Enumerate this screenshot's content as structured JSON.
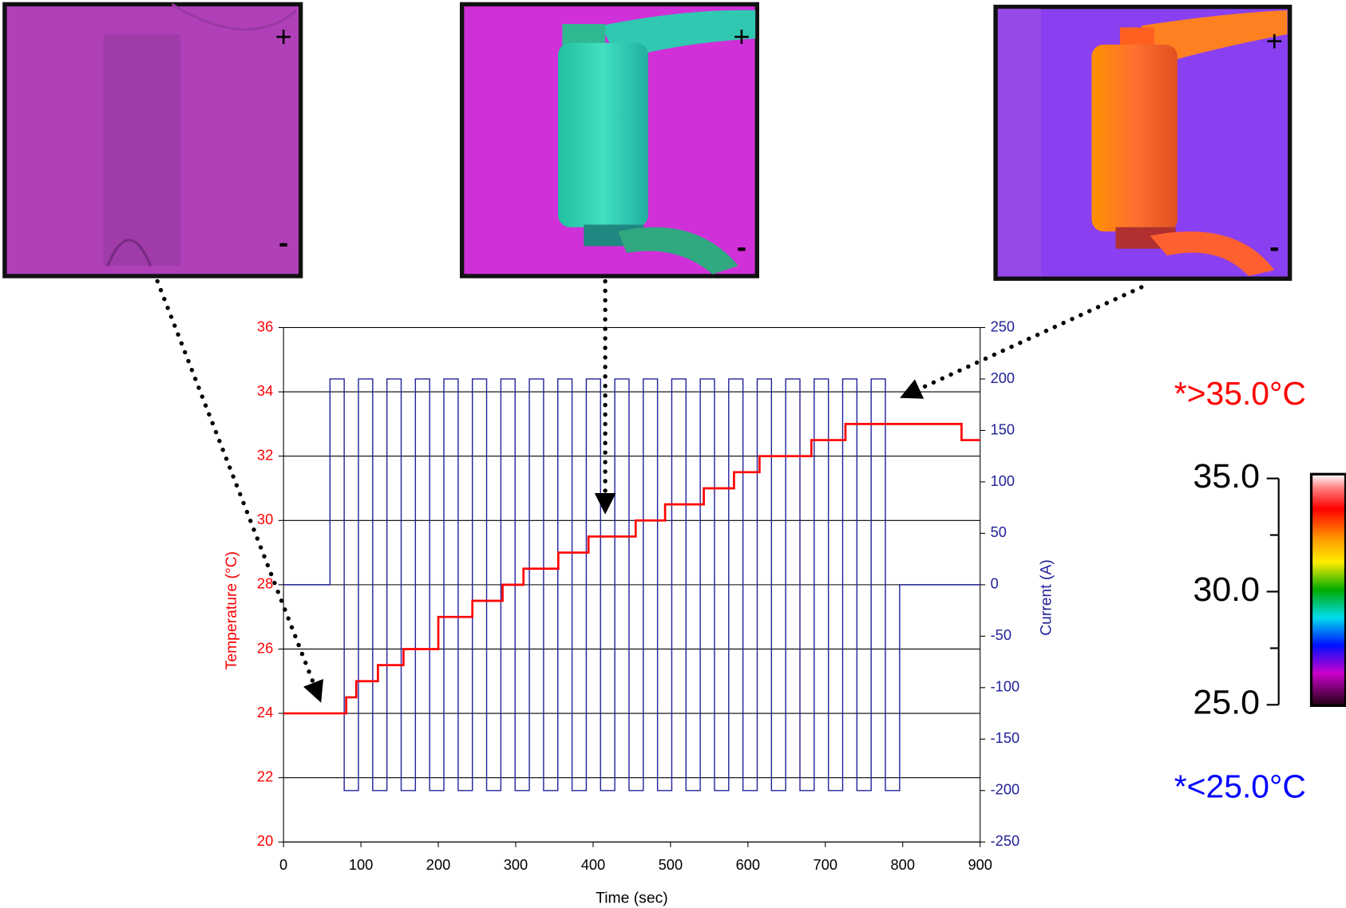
{
  "chart_data": {
    "type": "line",
    "x_label": "Time (sec)",
    "y_label": "Temperature (°C)",
    "y2_label": "Current (A)",
    "xlim": [
      0,
      900
    ],
    "xticks": [
      0,
      100,
      200,
      300,
      400,
      500,
      600,
      700,
      800,
      900
    ],
    "ylim": [
      20,
      36
    ],
    "yticks": [
      20,
      22,
      24,
      26,
      28,
      30,
      32,
      34,
      36
    ],
    "y2lim": [
      -250,
      250
    ],
    "y2ticks": [
      -250,
      -200,
      -150,
      -100,
      -50,
      0,
      50,
      100,
      150,
      200,
      250
    ],
    "grid": true,
    "series": [
      {
        "color": "#ff0000",
        "x": [
          0,
          81,
          81,
          94,
          94,
          122,
          122,
          155,
          155,
          200,
          200,
          244,
          244,
          283,
          283,
          310,
          310,
          355,
          355,
          394,
          394,
          455,
          455,
          493,
          493,
          543,
          543,
          582,
          582,
          615,
          615,
          682,
          682,
          726,
          726,
          876,
          876,
          900
        ],
        "values": [
          24,
          24,
          24.5,
          24.5,
          25,
          25,
          25.5,
          25.5,
          26,
          26,
          27,
          27,
          27.5,
          27.5,
          28,
          28,
          28.5,
          28.5,
          29,
          29,
          29.5,
          29.5,
          30,
          30,
          30.5,
          30.5,
          31,
          31,
          31.5,
          31.5,
          32,
          32,
          32.5,
          32.5,
          33,
          33,
          32.5,
          32.5
        ]
      },
      {
        "color": "#22229a",
        "axis": "y2",
        "x": [
          0,
          60,
          60,
          78.4,
          78.4,
          96.8,
          96.8,
          115.2,
          115.2,
          133.6,
          133.6,
          152,
          152,
          170.4,
          170.4,
          188.8,
          188.8,
          207.2,
          207.2,
          225.6,
          225.6,
          244,
          244,
          262.4,
          262.4,
          280.8,
          280.8,
          299.2,
          299.2,
          317.6,
          317.6,
          336,
          336,
          354.4,
          354.4,
          372.8,
          372.8,
          391.2,
          391.2,
          409.6,
          409.6,
          428,
          428,
          446.4,
          446.4,
          464.8,
          464.8,
          483.2,
          483.2,
          501.6,
          501.6,
          520,
          520,
          538.4,
          538.4,
          556.8,
          556.8,
          575.2,
          575.2,
          593.6,
          593.6,
          612,
          612,
          630.4,
          630.4,
          648.8,
          648.8,
          667.2,
          667.2,
          685.6,
          685.6,
          704,
          704,
          722.4,
          722.4,
          740.8,
          740.8,
          759.2,
          759.2,
          777.6,
          777.6,
          796,
          796,
          900
        ],
        "values": [
          0,
          0,
          200,
          200,
          -200,
          -200,
          200,
          200,
          -200,
          -200,
          200,
          200,
          -200,
          -200,
          200,
          200,
          -200,
          -200,
          200,
          200,
          -200,
          -200,
          200,
          200,
          -200,
          -200,
          200,
          200,
          -200,
          -200,
          200,
          200,
          -200,
          -200,
          200,
          200,
          -200,
          -200,
          200,
          200,
          -200,
          -200,
          200,
          200,
          -200,
          -200,
          200,
          200,
          -200,
          -200,
          200,
          200,
          -200,
          -200,
          200,
          200,
          -200,
          -200,
          200,
          200,
          -200,
          -200,
          200,
          200,
          -200,
          -200,
          200,
          200,
          -200,
          -200,
          200,
          200,
          -200,
          -200,
          200,
          200,
          -200,
          -200,
          200,
          200,
          -200,
          -200,
          0,
          0
        ]
      }
    ]
  },
  "thermal_images": [
    {
      "plus": "+",
      "minus": "-"
    },
    {
      "plus": "+",
      "minus": "-"
    },
    {
      "plus": "+",
      "minus": "-"
    }
  ],
  "color_scale": {
    "max_label": "*>35.0°C",
    "min_label": "*<25.0°C",
    "ticks": [
      "35.0",
      "30.0",
      "25.0"
    ]
  }
}
